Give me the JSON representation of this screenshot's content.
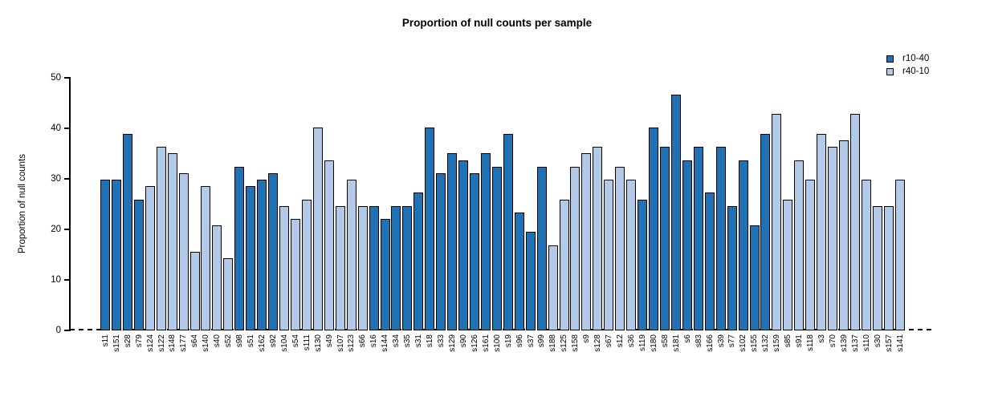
{
  "title": "Proportion of null counts per sample",
  "chart_data": {
    "type": "bar",
    "title": "Proportion of null counts per sample",
    "xlabel": "",
    "ylabel": "Proportion of null counts",
    "ylim": [
      0,
      50
    ],
    "yticks": [
      0,
      10,
      20,
      30,
      40,
      50
    ],
    "grid": false,
    "legend_position": "top-right",
    "zero_line_style": "dashed",
    "series_colors": {
      "r10-40": "#2171b5",
      "r40-10": "#b3c9e8"
    },
    "legend": [
      {
        "label": "r10-40",
        "color": "#2171b5"
      },
      {
        "label": "r40-10",
        "color": "#b3c9e8"
      }
    ],
    "bars": [
      {
        "label": "s11",
        "value": 29.87,
        "series": "r10-40"
      },
      {
        "label": "s151",
        "value": 29.87,
        "series": "r10-40"
      },
      {
        "label": "s28",
        "value": 38.96,
        "series": "r10-40"
      },
      {
        "label": "s79",
        "value": 25.97,
        "series": "r10-40"
      },
      {
        "label": "s124",
        "value": 28.57,
        "series": "r40-10"
      },
      {
        "label": "s122",
        "value": 36.36,
        "series": "r40-10"
      },
      {
        "label": "s148",
        "value": 35.06,
        "series": "r40-10"
      },
      {
        "label": "s177",
        "value": 31.17,
        "series": "r40-10"
      },
      {
        "label": "s64",
        "value": 15.58,
        "series": "r40-10"
      },
      {
        "label": "s140",
        "value": 28.57,
        "series": "r40-10"
      },
      {
        "label": "s40",
        "value": 20.78,
        "series": "r40-10"
      },
      {
        "label": "s52",
        "value": 14.29,
        "series": "r40-10"
      },
      {
        "label": "s98",
        "value": 32.47,
        "series": "r10-40"
      },
      {
        "label": "s51",
        "value": 28.57,
        "series": "r10-40"
      },
      {
        "label": "s162",
        "value": 29.87,
        "series": "r10-40"
      },
      {
        "label": "s92",
        "value": 31.17,
        "series": "r10-40"
      },
      {
        "label": "s104",
        "value": 24.68,
        "series": "r40-10"
      },
      {
        "label": "s54",
        "value": 22.08,
        "series": "r40-10"
      },
      {
        "label": "s111",
        "value": 25.97,
        "series": "r40-10"
      },
      {
        "label": "s130",
        "value": 40.26,
        "series": "r40-10"
      },
      {
        "label": "s49",
        "value": 33.77,
        "series": "r40-10"
      },
      {
        "label": "s107",
        "value": 24.68,
        "series": "r40-10"
      },
      {
        "label": "s123",
        "value": 29.87,
        "series": "r40-10"
      },
      {
        "label": "s66",
        "value": 24.68,
        "series": "r40-10"
      },
      {
        "label": "s16",
        "value": 24.68,
        "series": "r10-40"
      },
      {
        "label": "s144",
        "value": 22.08,
        "series": "r10-40"
      },
      {
        "label": "s34",
        "value": 24.68,
        "series": "r10-40"
      },
      {
        "label": "s35",
        "value": 24.68,
        "series": "r10-40"
      },
      {
        "label": "s31",
        "value": 27.27,
        "series": "r10-40"
      },
      {
        "label": "s18",
        "value": 40.26,
        "series": "r10-40"
      },
      {
        "label": "s33",
        "value": 31.17,
        "series": "r10-40"
      },
      {
        "label": "s129",
        "value": 35.06,
        "series": "r10-40"
      },
      {
        "label": "s90",
        "value": 33.77,
        "series": "r10-40"
      },
      {
        "label": "s126",
        "value": 31.17,
        "series": "r10-40"
      },
      {
        "label": "s161",
        "value": 35.06,
        "series": "r10-40"
      },
      {
        "label": "s100",
        "value": 32.47,
        "series": "r10-40"
      },
      {
        "label": "s19",
        "value": 38.96,
        "series": "r10-40"
      },
      {
        "label": "s96",
        "value": 23.38,
        "series": "r10-40"
      },
      {
        "label": "s37",
        "value": 19.48,
        "series": "r10-40"
      },
      {
        "label": "s99",
        "value": 32.47,
        "series": "r10-40"
      },
      {
        "label": "s188",
        "value": 16.88,
        "series": "r40-10"
      },
      {
        "label": "s125",
        "value": 25.97,
        "series": "r40-10"
      },
      {
        "label": "s158",
        "value": 32.47,
        "series": "r40-10"
      },
      {
        "label": "s9",
        "value": 35.06,
        "series": "r40-10"
      },
      {
        "label": "s128",
        "value": 36.36,
        "series": "r40-10"
      },
      {
        "label": "s67",
        "value": 29.87,
        "series": "r40-10"
      },
      {
        "label": "s12",
        "value": 32.47,
        "series": "r40-10"
      },
      {
        "label": "s36",
        "value": 29.87,
        "series": "r40-10"
      },
      {
        "label": "s119",
        "value": 25.97,
        "series": "r10-40"
      },
      {
        "label": "s180",
        "value": 40.26,
        "series": "r10-40"
      },
      {
        "label": "s58",
        "value": 36.36,
        "series": "r10-40"
      },
      {
        "label": "s181",
        "value": 46.75,
        "series": "r10-40"
      },
      {
        "label": "s6",
        "value": 33.77,
        "series": "r10-40"
      },
      {
        "label": "s83",
        "value": 36.36,
        "series": "r10-40"
      },
      {
        "label": "s166",
        "value": 27.27,
        "series": "r10-40"
      },
      {
        "label": "s39",
        "value": 36.36,
        "series": "r10-40"
      },
      {
        "label": "s77",
        "value": 24.68,
        "series": "r10-40"
      },
      {
        "label": "s102",
        "value": 33.77,
        "series": "r10-40"
      },
      {
        "label": "s155",
        "value": 20.78,
        "series": "r10-40"
      },
      {
        "label": "s132",
        "value": 38.96,
        "series": "r10-40"
      },
      {
        "label": "s159",
        "value": 42.86,
        "series": "r40-10"
      },
      {
        "label": "s85",
        "value": 25.97,
        "series": "r40-10"
      },
      {
        "label": "s91",
        "value": 33.77,
        "series": "r40-10"
      },
      {
        "label": "s118",
        "value": 29.87,
        "series": "r40-10"
      },
      {
        "label": "s3",
        "value": 38.96,
        "series": "r40-10"
      },
      {
        "label": "s70",
        "value": 36.36,
        "series": "r40-10"
      },
      {
        "label": "s139",
        "value": 37.66,
        "series": "r40-10"
      },
      {
        "label": "s137",
        "value": 42.86,
        "series": "r40-10"
      },
      {
        "label": "s110",
        "value": 29.87,
        "series": "r40-10"
      },
      {
        "label": "s30",
        "value": 24.68,
        "series": "r40-10"
      },
      {
        "label": "s157",
        "value": 24.68,
        "series": "r40-10"
      },
      {
        "label": "s141",
        "value": 29.87,
        "series": "r40-10"
      }
    ]
  }
}
